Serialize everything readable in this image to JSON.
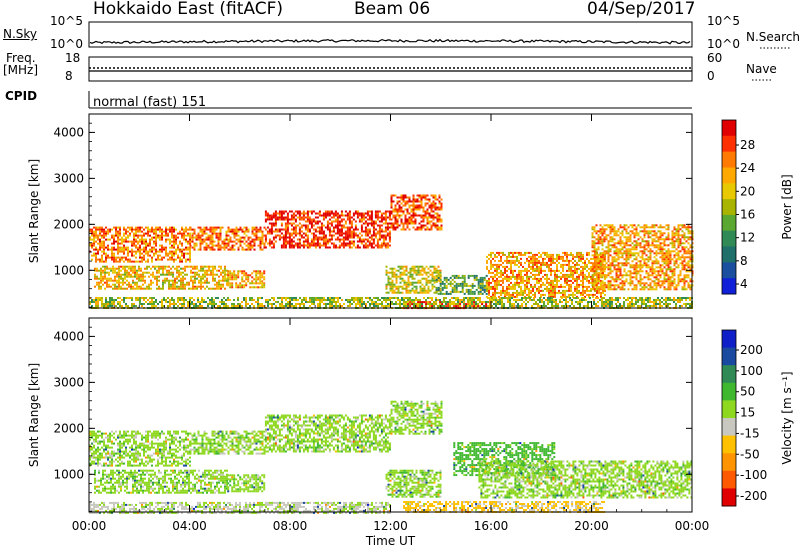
{
  "header": {
    "title": "Hokkaido East (fitACF)",
    "beam": "Beam 06",
    "date": "04/Sep/2017"
  },
  "strips": {
    "nsky_label": "N.Sky",
    "nsearch_label": "N.Search",
    "freq_label_line1": "Freq.",
    "freq_label_line2": "[MHz]",
    "nave_label": "Nave",
    "cpid_label": "CPID",
    "cpid_value": "normal (fast) 151",
    "noise_ticks": [
      "10^5",
      "10^0"
    ],
    "freq_ticks": [
      "18",
      "8"
    ],
    "nave_ticks": [
      "60",
      "0"
    ]
  },
  "chart_data": [
    {
      "type": "heatmap",
      "name": "power-panel",
      "ylabel": "Slant Range [km]",
      "yticks": [
        "4000",
        "3000",
        "2000",
        "1000"
      ],
      "xticks": [
        "00:00",
        "04:00",
        "08:00",
        "12:00",
        "16:00",
        "20:00",
        "00:00"
      ],
      "ylim": [
        180,
        4400
      ],
      "colorbar": {
        "label": "Power [dB]",
        "ticks": [
          "28",
          "24",
          "20",
          "16",
          "12",
          "8",
          "4"
        ],
        "colors": [
          "#e00000",
          "#ff3000",
          "#ff7a00",
          "#ffa800",
          "#e8c800",
          "#a8b400",
          "#5aa832",
          "#2f8a56",
          "#1f6f6a",
          "#1a4fa0",
          "#1020d8"
        ]
      },
      "echo_regions": [
        {
          "start_h": 0.0,
          "end_h": 4.0,
          "range_km": [
            1200,
            1950
          ],
          "level": 24
        },
        {
          "start_h": 4.0,
          "end_h": 7.0,
          "range_km": [
            1450,
            1950
          ],
          "level": 24
        },
        {
          "start_h": 7.0,
          "end_h": 12.0,
          "range_km": [
            1500,
            2300
          ],
          "level": 28
        },
        {
          "start_h": 12.0,
          "end_h": 14.0,
          "range_km": [
            1900,
            2650
          ],
          "level": 26
        },
        {
          "start_h": 0.2,
          "end_h": 5.5,
          "range_km": [
            600,
            1100
          ],
          "level": 20
        },
        {
          "start_h": 5.5,
          "end_h": 7.0,
          "range_km": [
            650,
            1000
          ],
          "level": 22
        },
        {
          "start_h": 11.8,
          "end_h": 14.0,
          "range_km": [
            500,
            1100
          ],
          "level": 18
        },
        {
          "start_h": 13.8,
          "end_h": 15.8,
          "range_km": [
            500,
            900
          ],
          "level": 12
        },
        {
          "start_h": 15.8,
          "end_h": 20.5,
          "range_km": [
            400,
            1400
          ],
          "level": 22
        },
        {
          "start_h": 20.0,
          "end_h": 24.0,
          "range_km": [
            600,
            2000
          ],
          "level": 22
        },
        {
          "start_h": 12.5,
          "end_h": 16.0,
          "range_km": [
            180,
            330
          ],
          "level": 28
        },
        {
          "start_h": 0.0,
          "end_h": 24.0,
          "range_km": [
            180,
            420
          ],
          "level": 16
        }
      ]
    },
    {
      "type": "heatmap",
      "name": "velocity-panel",
      "ylabel": "Slant Range [km]",
      "yticks": [
        "4000",
        "3000",
        "2000",
        "1000"
      ],
      "xticks": [
        "00:00",
        "04:00",
        "08:00",
        "12:00",
        "16:00",
        "20:00",
        "00:00"
      ],
      "xlabel": "Time UT",
      "ylim": [
        180,
        4400
      ],
      "colorbar": {
        "label": "Velocity [m s⁻¹]",
        "ticks": [
          "200",
          "100",
          "50",
          "15",
          "-15",
          "-50",
          "-100",
          "-200"
        ],
        "colors": [
          "#1020c8",
          "#1a4aa0",
          "#2f8a56",
          "#3fb830",
          "#8fd820",
          "#c8c8c0",
          "#ffc000",
          "#ff9400",
          "#ff5a00",
          "#e00000"
        ]
      },
      "echo_regions": [
        {
          "start_h": 0.0,
          "end_h": 4.0,
          "range_km": [
            1200,
            1950
          ],
          "level": 0
        },
        {
          "start_h": 4.0,
          "end_h": 7.0,
          "range_km": [
            1450,
            1950
          ],
          "level": 0
        },
        {
          "start_h": 7.0,
          "end_h": 12.0,
          "range_km": [
            1500,
            2300
          ],
          "level": 0
        },
        {
          "start_h": 12.0,
          "end_h": 14.0,
          "range_km": [
            1900,
            2600
          ],
          "level": 0
        },
        {
          "start_h": 0.2,
          "end_h": 5.5,
          "range_km": [
            600,
            1100
          ],
          "level": 0
        },
        {
          "start_h": 5.5,
          "end_h": 7.0,
          "range_km": [
            650,
            1000
          ],
          "level": 0
        },
        {
          "start_h": 11.8,
          "end_h": 14.0,
          "range_km": [
            500,
            1100
          ],
          "level": 0
        },
        {
          "start_h": 14.5,
          "end_h": 18.5,
          "range_km": [
            1000,
            1700
          ],
          "level": 30
        },
        {
          "start_h": 15.5,
          "end_h": 24.0,
          "range_km": [
            500,
            1300
          ],
          "level": 0
        },
        {
          "start_h": 12.5,
          "end_h": 20.5,
          "range_km": [
            180,
            420
          ],
          "level": -60
        },
        {
          "start_h": 0.0,
          "end_h": 12.0,
          "range_km": [
            180,
            400
          ],
          "level": -20
        }
      ]
    }
  ]
}
